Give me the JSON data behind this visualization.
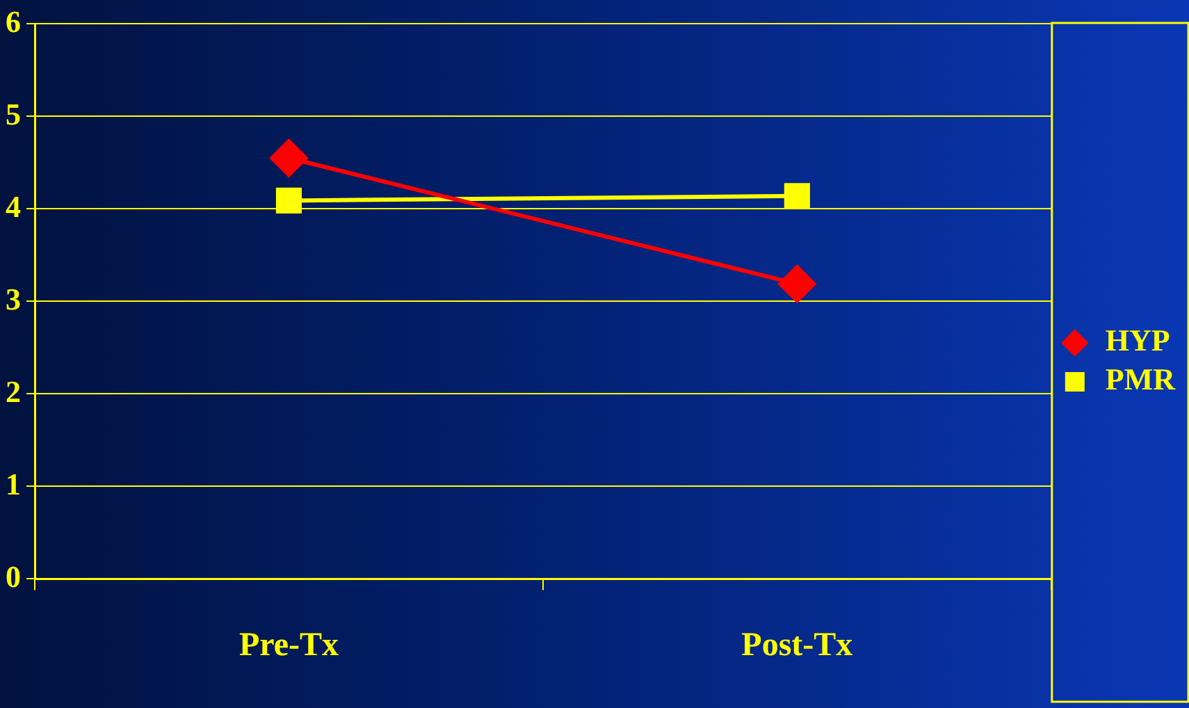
{
  "chart_data": {
    "type": "line",
    "categories": [
      "Pre-Tx",
      "Post-Tx"
    ],
    "series": [
      {
        "name": "HYP",
        "color": "#ff0000",
        "values": [
          4.55,
          3.19
        ],
        "marker": "diamond"
      },
      {
        "name": "PMR",
        "color": "#ffff00",
        "values": [
          4.09,
          4.14
        ],
        "marker": "square"
      }
    ],
    "ylim": [
      0,
      6
    ],
    "yticks": [
      0,
      1,
      2,
      3,
      4,
      5,
      6
    ],
    "grid": "y",
    "legend": "right",
    "line_style": "solid"
  }
}
